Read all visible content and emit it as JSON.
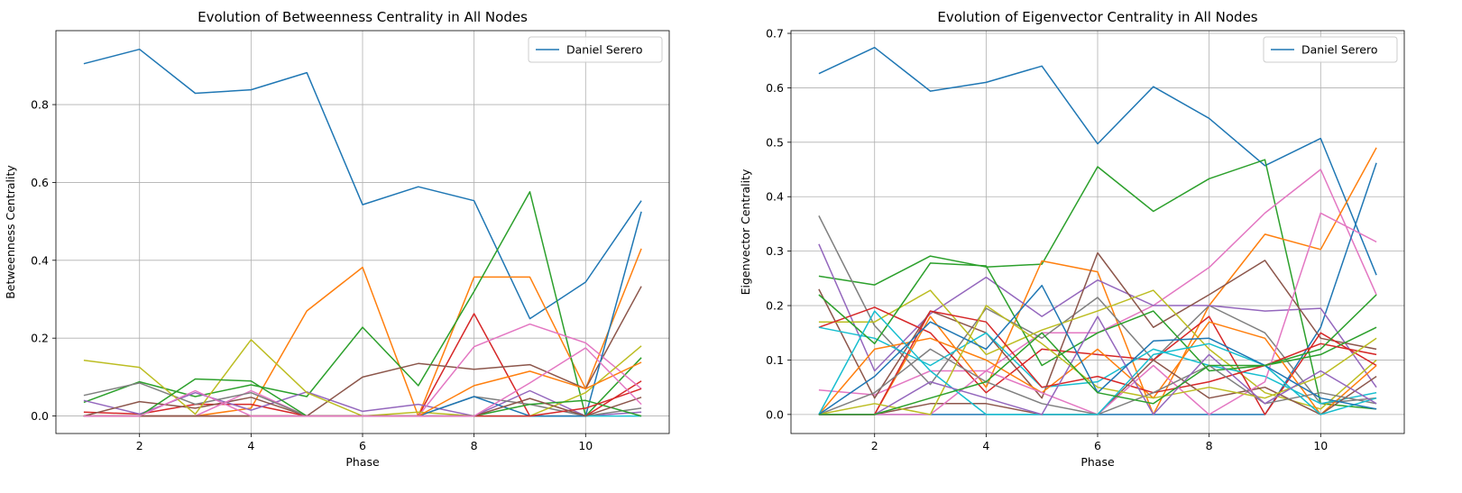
{
  "chart_data": [
    {
      "type": "line",
      "title": "Evolution of Betweenness Centrality in All Nodes",
      "xlabel": "Phase",
      "ylabel": "Betweenness Centrality",
      "xlim": [
        0.5,
        11.5
      ],
      "ylim": [
        -0.045,
        0.99
      ],
      "xticks": [
        2,
        4,
        6,
        8,
        10
      ],
      "yticks": [
        0.0,
        0.2,
        0.4,
        0.6,
        0.8
      ],
      "ytick_labels": [
        "0.0",
        "0.2",
        "0.4",
        "0.6",
        "0.8"
      ],
      "grid": true,
      "legend": {
        "placement": "top-right",
        "entries": [
          "Daniel Serero"
        ]
      },
      "x": [
        1,
        2,
        3,
        4,
        5,
        6,
        7,
        8,
        9,
        10,
        11
      ],
      "series": [
        {
          "name": "Daniel Serero",
          "color": "#1f77b4",
          "values": [
            0.905,
            0.942,
            0.829,
            0.838,
            0.882,
            0.543,
            0.589,
            0.553,
            0.25,
            0.344,
            0.553
          ]
        },
        {
          "color": "#ff7f0e",
          "values": [
            0,
            0,
            0,
            0.02,
            0.27,
            0.382,
            0,
            0.357,
            0.357,
            0.07,
            0.43
          ]
        },
        {
          "color": "#2ca02c",
          "values": [
            0.035,
            0.088,
            0.05,
            0.08,
            0.05,
            0.228,
            0.078,
            0.32,
            0.576,
            0,
            0.15
          ]
        },
        {
          "color": "#d62728",
          "values": [
            0.01,
            0.005,
            0.03,
            0.03,
            0,
            0,
            0,
            0.263,
            0,
            0,
            0.09
          ]
        },
        {
          "color": "#9467bd",
          "values": [
            0.04,
            0.005,
            0.06,
            0.015,
            0.062,
            0.012,
            0.03,
            0,
            0.065,
            0,
            0.01
          ]
        },
        {
          "color": "#8c564b",
          "values": [
            0,
            0.037,
            0.02,
            0.048,
            0,
            0.1,
            0.135,
            0.12,
            0.132,
            0.07,
            0.333
          ]
        },
        {
          "color": "#e377c2",
          "values": [
            0,
            0,
            0,
            0.065,
            0,
            0,
            0,
            0.178,
            0.236,
            0.188,
            0.07
          ]
        },
        {
          "color": "#7f7f7f",
          "values": [
            0.053,
            0.085,
            0.03,
            0.06,
            0,
            0,
            0,
            0.05,
            0.03,
            0,
            0.02
          ]
        },
        {
          "color": "#bcbd22",
          "values": [
            0.143,
            0.125,
            0.005,
            0.196,
            0.06,
            0,
            0.01,
            0,
            0,
            0.06,
            0.18
          ]
        },
        {
          "color": "#17becf",
          "values": [
            0,
            0,
            0,
            0,
            0,
            0,
            0,
            0,
            0,
            0,
            0
          ]
        },
        {
          "color": "#1f77b4",
          "values": [
            0,
            0,
            0,
            0,
            0,
            0,
            0,
            0.05,
            0,
            0,
            0.525
          ]
        },
        {
          "color": "#ff7f0e",
          "values": [
            0,
            0,
            0,
            0,
            0,
            0,
            0,
            0.078,
            0.115,
            0.07,
            0.138
          ]
        },
        {
          "color": "#2ca02c",
          "values": [
            0,
            0,
            0.095,
            0.09,
            0,
            0,
            0,
            0,
            0.03,
            0.04,
            0
          ]
        },
        {
          "color": "#d62728",
          "values": [
            0,
            0,
            0,
            0,
            0,
            0,
            0,
            0,
            0,
            0.02,
            0.07
          ]
        },
        {
          "color": "#8c564b",
          "values": [
            0,
            0,
            0,
            0,
            0,
            0,
            0,
            0,
            0.045,
            0,
            0.048
          ]
        },
        {
          "color": "#e377c2",
          "values": [
            0,
            0,
            0.065,
            0,
            0,
            0,
            0,
            0,
            0.085,
            0.175,
            0.03
          ]
        }
      ]
    },
    {
      "type": "line",
      "title": "Evolution of Eigenvector Centrality in All Nodes",
      "xlabel": "Phase",
      "ylabel": "Eigenvector Centrality",
      "xlim": [
        0.5,
        11.5
      ],
      "ylim": [
        -0.035,
        0.705
      ],
      "xticks": [
        2,
        4,
        6,
        8,
        10
      ],
      "yticks": [
        0.0,
        0.1,
        0.2,
        0.3,
        0.4,
        0.5,
        0.6,
        0.7
      ],
      "ytick_labels": [
        "0.0",
        "0.1",
        "0.2",
        "0.3",
        "0.4",
        "0.5",
        "0.6",
        "0.7"
      ],
      "grid": true,
      "legend": {
        "placement": "top-right",
        "entries": [
          "Daniel Serero"
        ]
      },
      "x": [
        1,
        2,
        3,
        4,
        5,
        6,
        7,
        8,
        9,
        10,
        11
      ],
      "series": [
        {
          "name": "Daniel Serero",
          "color": "#1f77b4",
          "values": [
            0.626,
            0.674,
            0.594,
            0.61,
            0.64,
            0.497,
            0.602,
            0.544,
            0.457,
            0.507,
            0.256
          ]
        },
        {
          "color": "#2ca02c",
          "values": [
            0.254,
            0.238,
            0.291,
            0.271,
            0.276,
            0.455,
            0.373,
            0.433,
            0.468,
            0.02,
            0.01
          ]
        },
        {
          "color": "#e377c2",
          "values": [
            0.045,
            0.036,
            0.08,
            0.08,
            0.15,
            0.15,
            0.2,
            0.27,
            0.37,
            0.45,
            0.22
          ]
        },
        {
          "color": "#ff7f0e",
          "values": [
            0,
            0,
            0.18,
            0.05,
            0.282,
            0.262,
            0,
            0.2,
            0.331,
            0.303,
            0.49
          ]
        },
        {
          "color": "#1f77b4",
          "values": [
            0,
            0,
            0,
            0,
            0,
            0,
            0,
            0,
            0,
            0.16,
            0.462
          ]
        },
        {
          "color": "#7f7f7f",
          "values": [
            0.365,
            0.163,
            0.055,
            0.195,
            0.14,
            0.215,
            0.1,
            0.2,
            0.15,
            0.02,
            0.03
          ]
        },
        {
          "color": "#9467bd",
          "values": [
            0.313,
            0.08,
            0.185,
            0.252,
            0.18,
            0.247,
            0.2,
            0.2,
            0.19,
            0.195,
            0.05
          ]
        },
        {
          "color": "#8c564b",
          "values": [
            0.23,
            0.03,
            0.19,
            0.15,
            0.03,
            0.297,
            0.16,
            0.22,
            0.283,
            0.14,
            0.12
          ]
        },
        {
          "color": "#bcbd22",
          "values": [
            0.17,
            0.17,
            0.228,
            0.11,
            0.155,
            0.19,
            0.228,
            0.12,
            0.04,
            0.01,
            0.1
          ]
        },
        {
          "color": "#d62728",
          "values": [
            0.16,
            0.197,
            0.15,
            0.04,
            0.12,
            0.11,
            0.1,
            0.18,
            0.0,
            0.15,
            0.09
          ]
        },
        {
          "color": "#17becf",
          "values": [
            0.16,
            0.14,
            0.09,
            0.15,
            0.05,
            0.06,
            0.12,
            0.09,
            0.07,
            0.02,
            0.04
          ]
        },
        {
          "color": "#2ca02c",
          "values": [
            0.22,
            0.13,
            0.278,
            0.273,
            0.09,
            0.15,
            0.19,
            0.08,
            0.09,
            0.11,
            0.16
          ]
        },
        {
          "color": "#ff7f0e",
          "values": [
            0,
            0.12,
            0.14,
            0.1,
            0.04,
            0.12,
            0.03,
            0.17,
            0.14,
            0,
            0.09
          ]
        },
        {
          "color": "#d62728",
          "values": [
            0,
            0,
            0.19,
            0.17,
            0.05,
            0.07,
            0.04,
            0.06,
            0.09,
            0.13,
            0.11
          ]
        },
        {
          "color": "#8c564b",
          "values": [
            0,
            0,
            0.02,
            0.02,
            0,
            0,
            0.1,
            0.03,
            0.05,
            0,
            0.07
          ]
        },
        {
          "color": "#e377c2",
          "values": [
            0,
            0,
            0,
            0.08,
            0.04,
            0,
            0.09,
            0,
            0.06,
            0.37,
            0.317
          ]
        },
        {
          "color": "#7f7f7f",
          "values": [
            0,
            0.04,
            0.12,
            0.06,
            0.02,
            0,
            0.04,
            0.09,
            0.02,
            0.04,
            0.02
          ]
        },
        {
          "color": "#bcbd22",
          "values": [
            0,
            0.02,
            0,
            0.2,
            0.13,
            0.05,
            0.03,
            0.05,
            0.03,
            0.07,
            0.14
          ]
        },
        {
          "color": "#17becf",
          "values": [
            0,
            0.19,
            0.08,
            0,
            0,
            0,
            0.11,
            0.13,
            0.09,
            0,
            0.03
          ]
        },
        {
          "color": "#9467bd",
          "values": [
            0,
            0,
            0.06,
            0.03,
            0,
            0.18,
            0,
            0.11,
            0.02,
            0.08,
            0.02
          ]
        },
        {
          "color": "#1f77b4",
          "values": [
            0,
            0.07,
            0.17,
            0.12,
            0.237,
            0.04,
            0.135,
            0.14,
            0.09,
            0.03,
            0.01
          ]
        },
        {
          "color": "#2ca02c",
          "values": [
            0,
            0,
            0.03,
            0.06,
            0.15,
            0.04,
            0.02,
            0.09,
            0.09,
            0.12,
            0.22
          ]
        }
      ]
    }
  ]
}
